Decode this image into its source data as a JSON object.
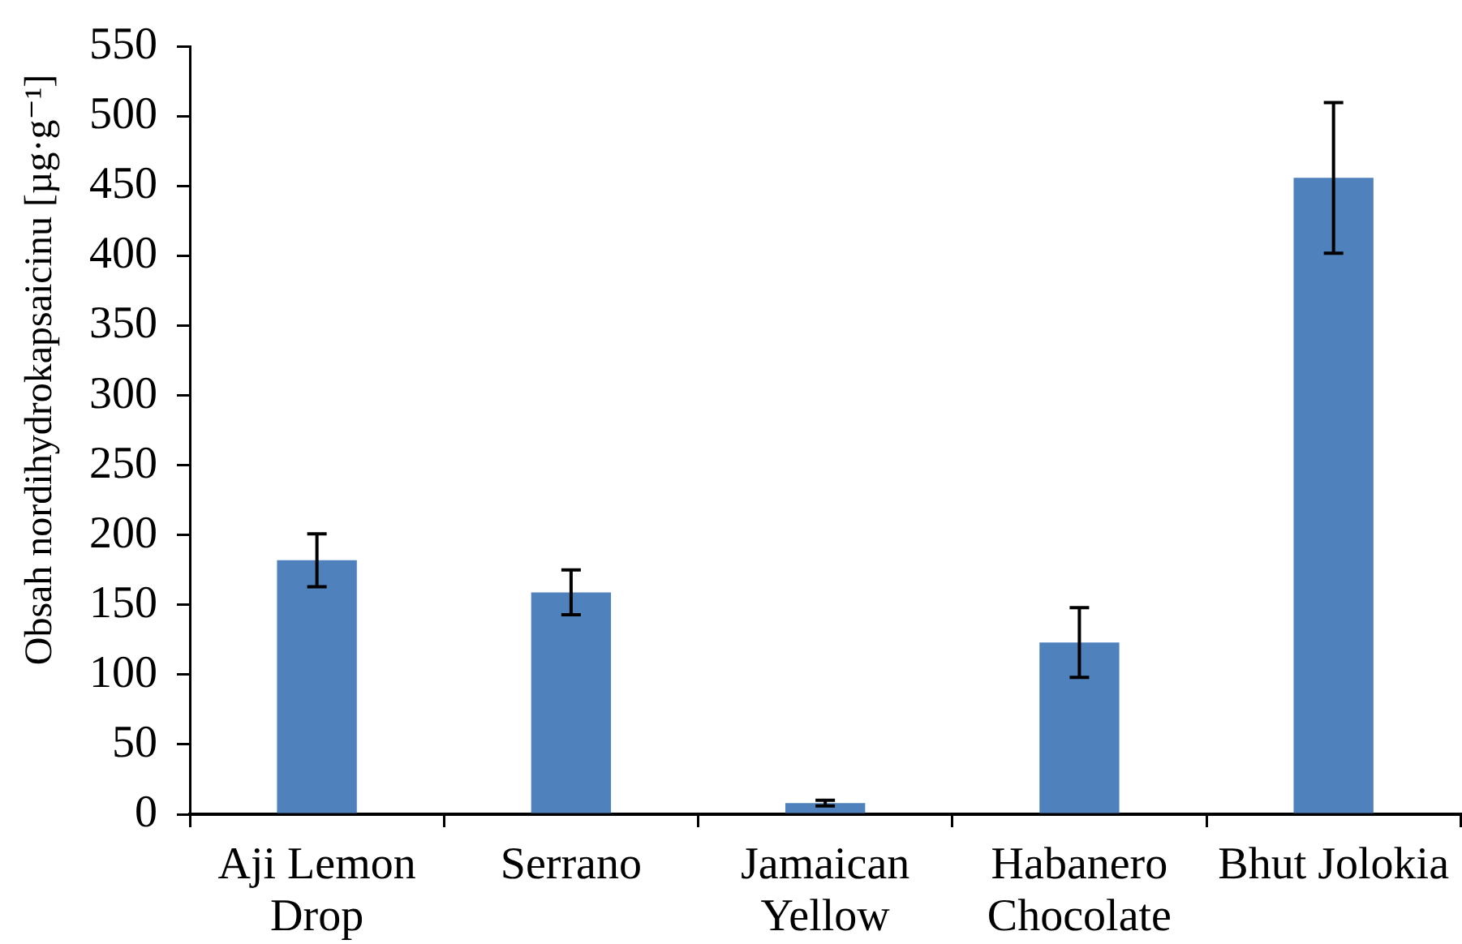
{
  "chart_data": {
    "type": "bar",
    "ylabel": "Obsah nordihydrokapsaicinu [µg·g⁻¹]",
    "categories": [
      "Aji Lemon Drop",
      "Serrano",
      "Jamaican Yellow",
      "Habanero Chocolate",
      "Bhut Jolokia"
    ],
    "values": [
      182,
      159,
      8,
      123,
      456
    ],
    "errors": [
      19,
      16,
      2,
      25,
      54
    ],
    "color": "#4f81bd",
    "ylim": [
      0,
      550
    ],
    "yticks": [
      0,
      50,
      100,
      150,
      200,
      250,
      300,
      350,
      400,
      450,
      500,
      550
    ]
  }
}
